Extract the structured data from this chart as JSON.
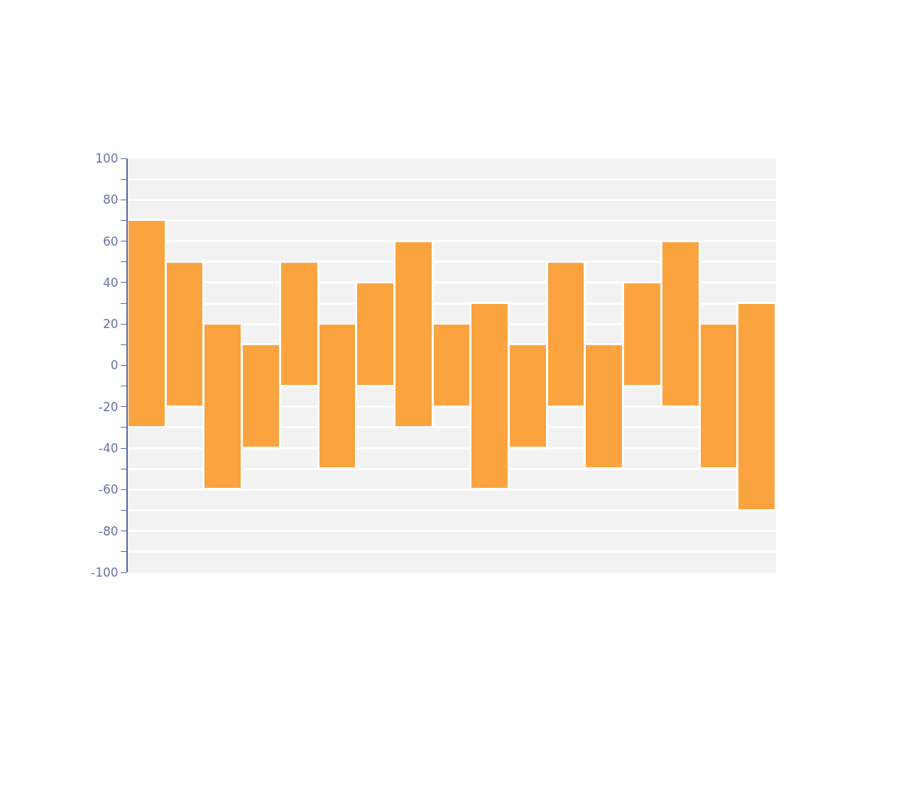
{
  "chart_data": {
    "type": "bar",
    "categories": [
      null,
      null,
      null,
      null,
      null,
      null,
      null,
      null,
      null,
      null,
      null,
      null,
      null,
      null,
      null,
      null,
      null
    ],
    "base": [
      -30,
      -20,
      -60,
      -40,
      -10,
      -50,
      -10,
      -30,
      -20,
      -60,
      -40,
      -20,
      -50,
      -10,
      -20,
      -50,
      -70
    ],
    "values": [
      100,
      70,
      80,
      50,
      60,
      70,
      50,
      90,
      40,
      90,
      50,
      70,
      60,
      50,
      80,
      70,
      100
    ],
    "color": "#fba43f",
    "ylim": [
      -100,
      100
    ],
    "yticks": [
      -100,
      {
        "value": -90,
        "label": null
      },
      -80,
      {
        "value": -70,
        "label": null
      },
      -60,
      {
        "value": -50,
        "label": null
      },
      -40,
      {
        "value": -30,
        "label": null
      },
      -20,
      {
        "value": -10,
        "label": null
      },
      0,
      {
        "value": 10,
        "label": null
      },
      20,
      {
        "value": 30,
        "label": null
      },
      40,
      {
        "value": 50,
        "label": null
      },
      60,
      {
        "value": 70,
        "label": null
      },
      80,
      {
        "value": 90,
        "label": null
      },
      100
    ],
    "grid": true,
    "tick_labels": "y"
  }
}
